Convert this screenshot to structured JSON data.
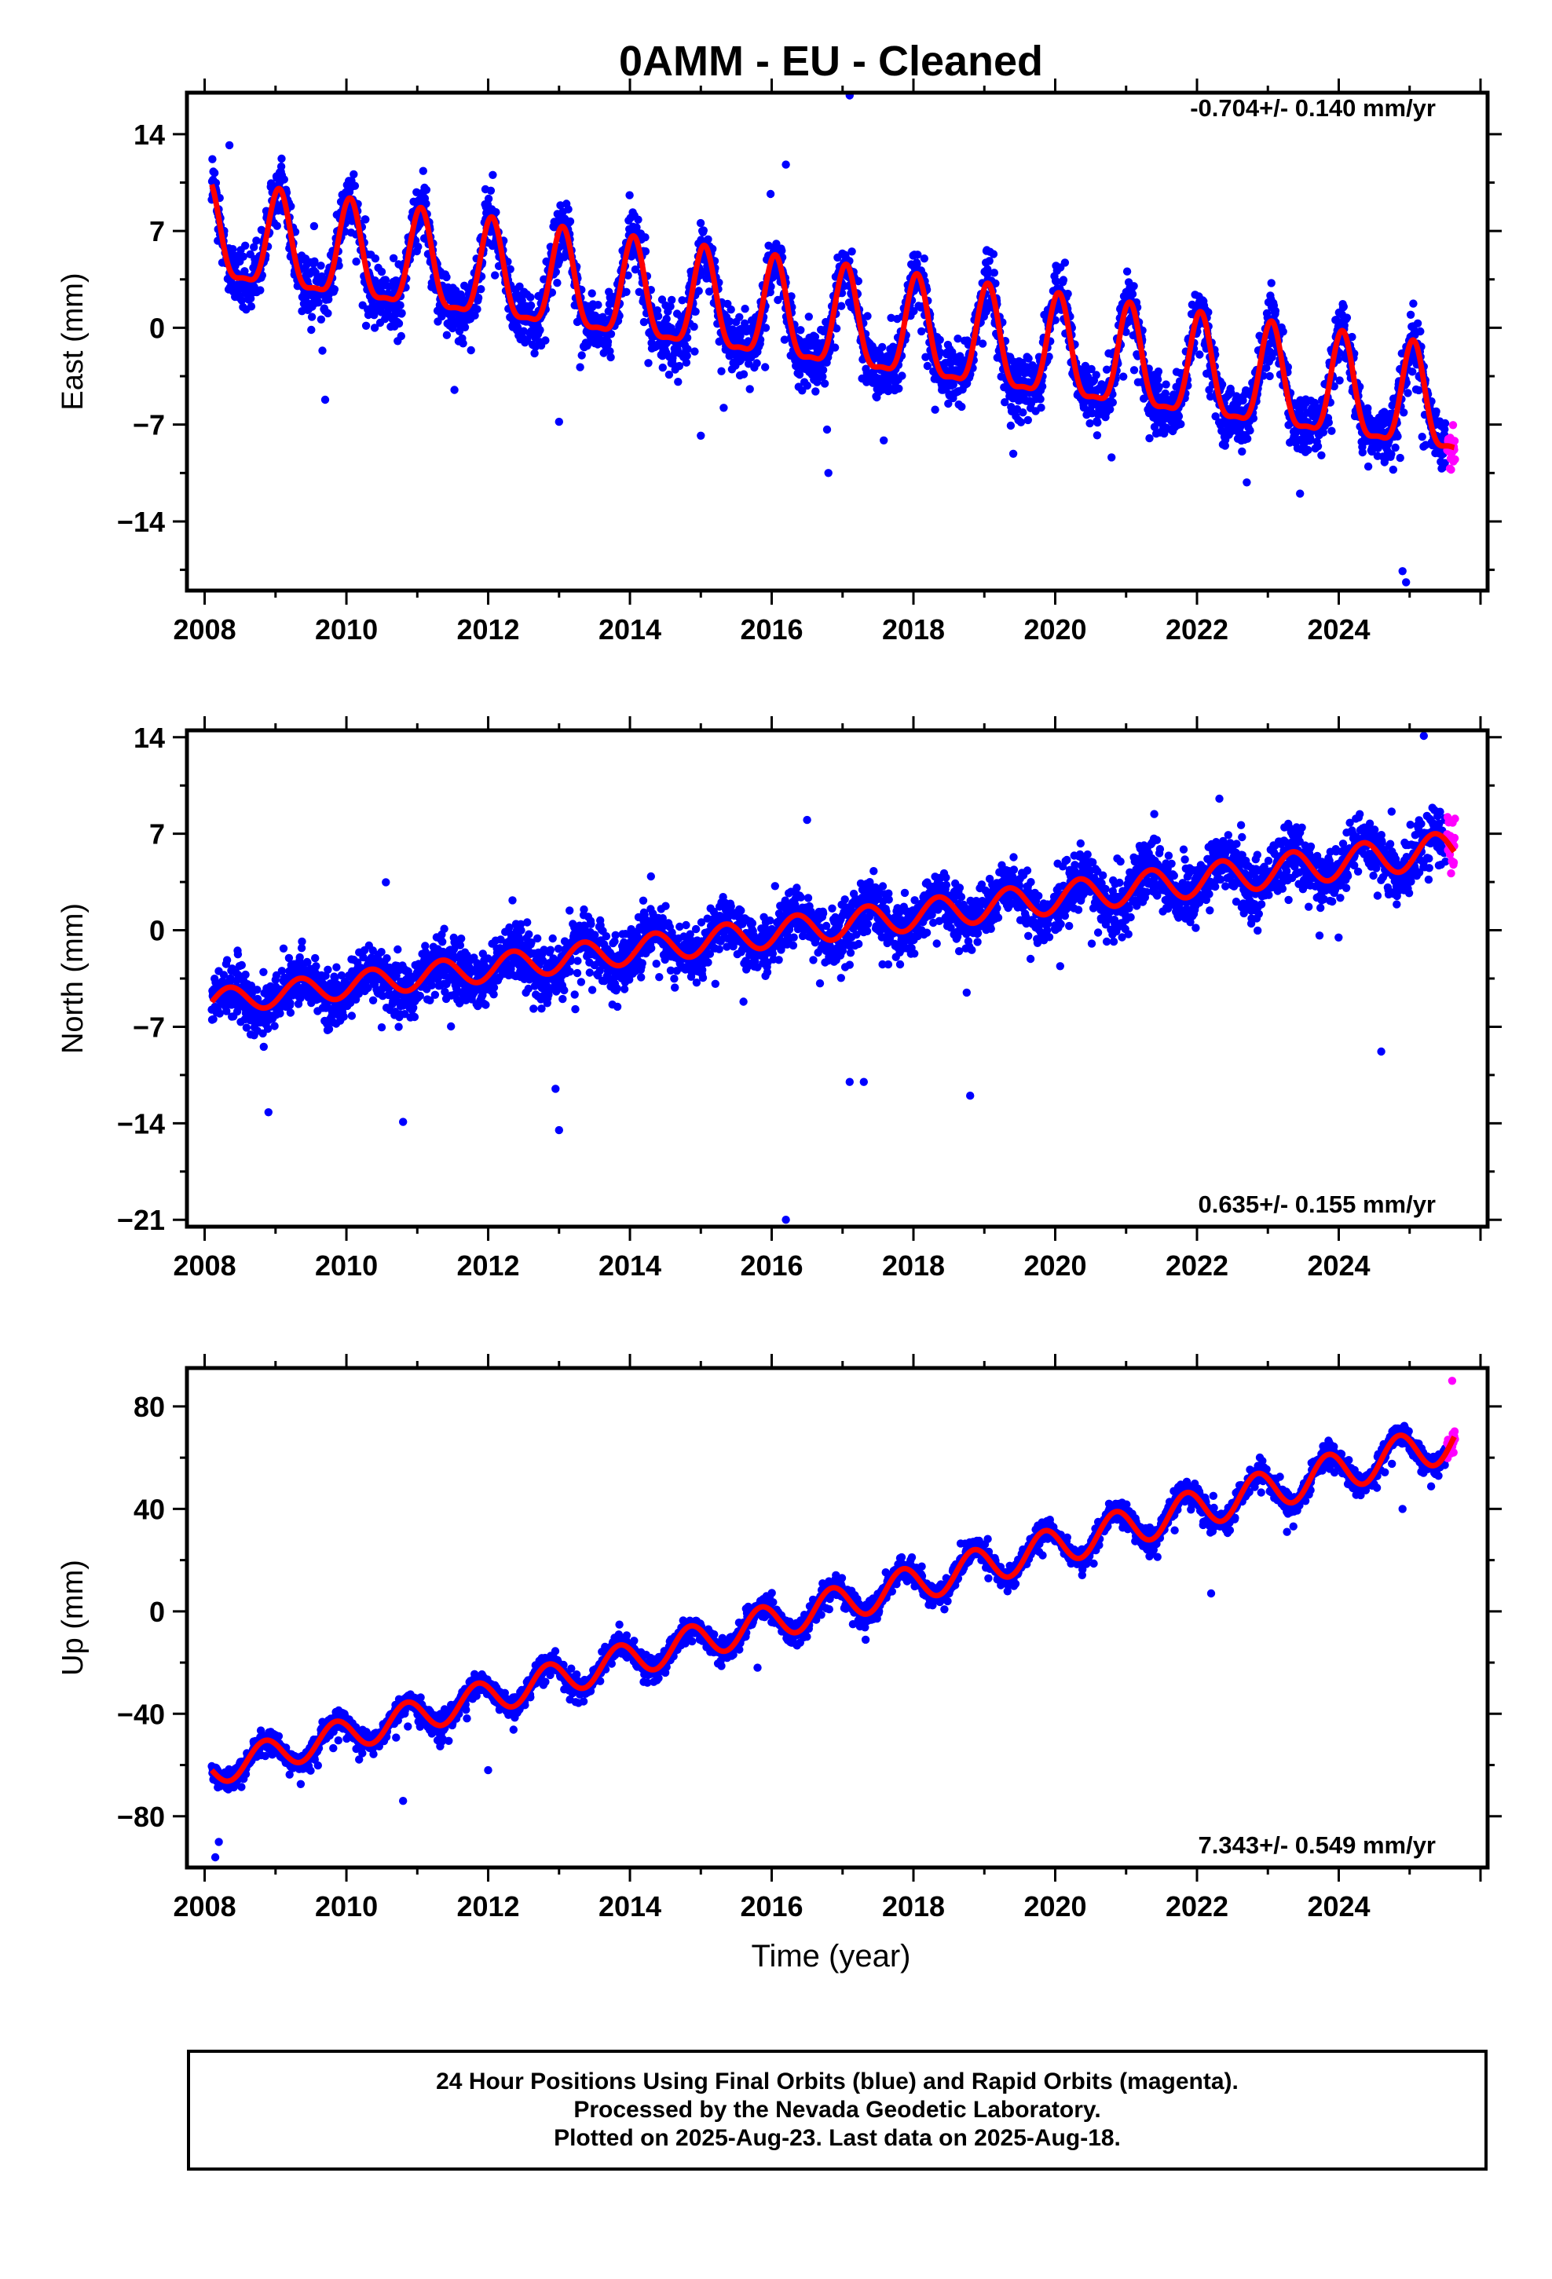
{
  "chart_data": {
    "title": "0AMM  - EU - Cleaned",
    "type": "scatter",
    "xlabel": "Time (year)",
    "x_ticks": [
      2008,
      2010,
      2012,
      2014,
      2016,
      2018,
      2020,
      2022,
      2024
    ],
    "xlim": [
      2007.75,
      2026.1
    ],
    "colors": {
      "final": "#0000ff",
      "rapid": "#ff00ff",
      "model": "#ff0000"
    },
    "panels": [
      {
        "ylabel": "East (mm)",
        "ylim": [
          -19,
          17
        ],
        "y_ticks": [
          14,
          7,
          0,
          -7,
          -14
        ],
        "rate_label": "-0.704+/- 0.140 mm/yr",
        "rate_position": "top-right",
        "model": {
          "start": 2008.1,
          "end": 2025.63,
          "y0": 6.3,
          "slope": -0.704,
          "amplitude": 3.4,
          "amplitude_slope": 0.015,
          "phase_year": 2008.05,
          "semiannual": 0.3
        },
        "scatter_spread": 2.0,
        "outliers": [
          [
            2017.1,
            16.8
          ],
          [
            2016.2,
            11.8
          ],
          [
            2008.35,
            13.2
          ],
          [
            2024.9,
            -17.6
          ],
          [
            2024.95,
            -18.4
          ],
          [
            2025.6,
            -9.0
          ],
          [
            2009.7,
            -5.2
          ],
          [
            2013.0,
            -6.8
          ],
          [
            2015.0,
            -7.8
          ],
          [
            2016.8,
            -10.5
          ]
        ]
      },
      {
        "ylabel": "North (mm)",
        "ylim": [
          -21.5,
          14.5
        ],
        "y_ticks": [
          14,
          7,
          0,
          -7,
          -14,
          -21
        ],
        "rate_label": "0.635+/- 0.155 mm/yr",
        "rate_position": "bottom-right",
        "model": {
          "start": 2008.1,
          "end": 2025.63,
          "y0": -5.2,
          "slope": 0.635,
          "amplitude": 0.9,
          "amplitude_slope": 0.02,
          "phase_year": 2008.35,
          "semiannual": 0.0
        },
        "scatter_spread": 1.8,
        "outliers": [
          [
            2016.2,
            -21.0
          ],
          [
            2025.2,
            14.1
          ],
          [
            2013.0,
            -14.5
          ],
          [
            2012.95,
            -11.5
          ],
          [
            2017.1,
            -11.0
          ],
          [
            2017.3,
            -11.0
          ],
          [
            2018.8,
            -12.0
          ],
          [
            2016.5,
            8.0
          ],
          [
            2024.6,
            -8.8
          ],
          [
            2010.8,
            -13.9
          ],
          [
            2008.9,
            -13.2
          ]
        ]
      },
      {
        "ylabel": "Up (mm)",
        "ylim": [
          -100,
          95
        ],
        "y_ticks": [
          80,
          40,
          0,
          -40,
          -80
        ],
        "rate_label": "7.343+/- 0.549 mm/yr",
        "rate_position": "bottom-right",
        "model": {
          "start": 2008.1,
          "end": 2025.63,
          "y0": -62,
          "slope": 7.343,
          "amplitude": 6.0,
          "amplitude_slope": 0.1,
          "phase_year": 2008.85,
          "semiannual": 0.0
        },
        "scatter_spread": 4.0,
        "outliers": [
          [
            2008.15,
            -96
          ],
          [
            2008.2,
            -90
          ],
          [
            2010.8,
            -74
          ],
          [
            2015.8,
            -22
          ],
          [
            2022.2,
            7
          ],
          [
            2024.9,
            40
          ],
          [
            2025.6,
            90
          ],
          [
            2025.62,
            62
          ],
          [
            2012.0,
            -62
          ]
        ]
      }
    ]
  },
  "footer": {
    "line1": "24 Hour Positions Using Final Orbits (blue) and Rapid Orbits (magenta).",
    "line2": "Processed by the Nevada Geodetic Laboratory.",
    "line3": "Plotted on 2025-Aug-23. Last data on 2025-Aug-18."
  }
}
